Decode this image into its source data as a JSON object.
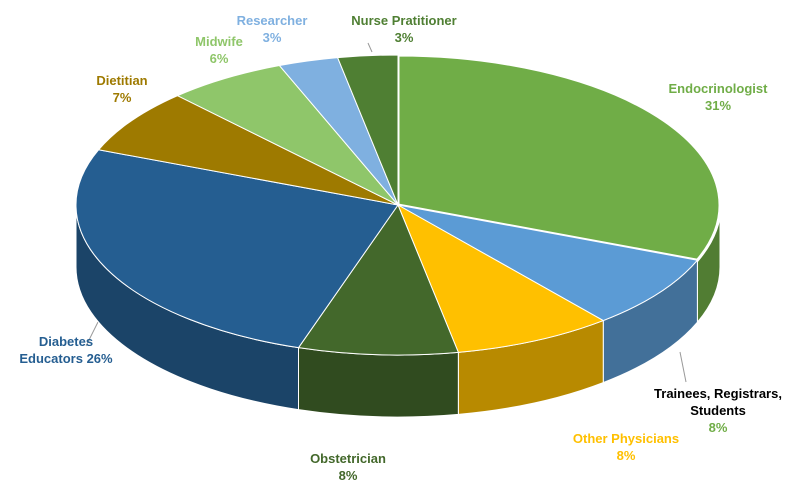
{
  "chart_data": {
    "type": "pie",
    "categories": [
      "Endocrinologist",
      "Trainees, Registrars, Students",
      "Other Physicians",
      "Obstetrician",
      "Diabetes Educators",
      "Dietitian",
      "Midwife",
      "Researcher",
      "Nurse Pratitioner"
    ],
    "values": [
      31,
      8,
      8,
      8,
      26,
      7,
      6,
      3,
      3
    ],
    "value_labels": [
      "31%",
      "8%",
      "8%",
      "8%",
      "26%",
      "7%",
      "6%",
      "3%",
      "3%"
    ],
    "colors": [
      "#70ad47",
      "#5b9bd5",
      "#ffc000",
      "#43682b",
      "#255e91",
      "#9e7a00",
      "#8fc66a",
      "#7fb0e0",
      "#4f7f33"
    ]
  }
}
